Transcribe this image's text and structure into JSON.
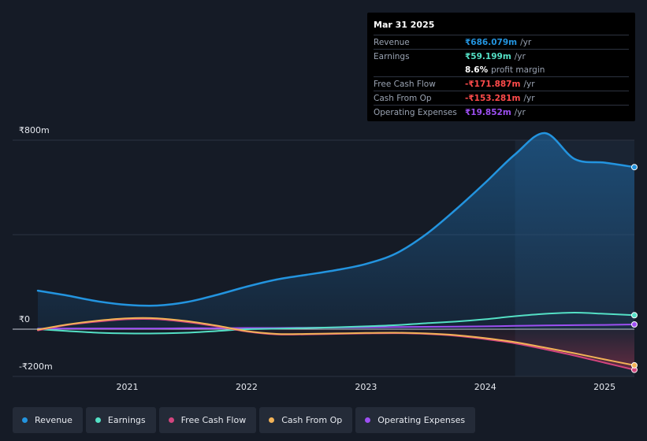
{
  "tooltip": {
    "date": "Mar 31 2025",
    "rows": [
      {
        "label": "Revenue",
        "value": "₹686.079m",
        "unit": "/yr",
        "color": "#2394df"
      },
      {
        "label": "Earnings",
        "value": "₹59.199m",
        "unit": "/yr",
        "color": "#54e0c5"
      },
      {
        "label": "",
        "value": "8.6%",
        "unit": "profit margin",
        "color": "#ffffff"
      },
      {
        "label": "Free Cash Flow",
        "value": "-₹171.887m",
        "unit": "/yr",
        "color": "#ff4b4b"
      },
      {
        "label": "Cash From Op",
        "value": "-₹153.281m",
        "unit": "/yr",
        "color": "#ff4b4b"
      },
      {
        "label": "Operating Expenses",
        "value": "₹19.852m",
        "unit": "/yr",
        "color": "#9d4ff2"
      }
    ]
  },
  "legend": [
    {
      "label": "Revenue",
      "color": "#2394df"
    },
    {
      "label": "Earnings",
      "color": "#54e0c5"
    },
    {
      "label": "Free Cash Flow",
      "color": "#d3457e"
    },
    {
      "label": "Cash From Op",
      "color": "#f2b257"
    },
    {
      "label": "Operating Expenses",
      "color": "#9d4ff2"
    }
  ],
  "chart_data": {
    "type": "area",
    "ylim": [
      -200,
      800
    ],
    "yticks": [
      {
        "value": 800,
        "label": "₹800m"
      },
      {
        "value": 0,
        "label": "₹0"
      },
      {
        "value": -200,
        "label": "-₹200m"
      }
    ],
    "xlim": [
      2020.25,
      2025.25
    ],
    "xticks": [
      {
        "value": 2021,
        "label": "2021"
      },
      {
        "value": 2022,
        "label": "2022"
      },
      {
        "value": 2023,
        "label": "2023"
      },
      {
        "value": 2024,
        "label": "2024"
      },
      {
        "value": 2025,
        "label": "2025"
      }
    ],
    "highlight_from": 2024.25,
    "series": [
      {
        "name": "Revenue",
        "color": "#2394df",
        "fill": true,
        "x": [
          2020.25,
          2020.5,
          2020.75,
          2021.0,
          2021.25,
          2021.5,
          2021.75,
          2022.0,
          2022.25,
          2022.5,
          2022.75,
          2023.0,
          2023.25,
          2023.5,
          2023.75,
          2024.0,
          2024.25,
          2024.5,
          2024.75,
          2025.0,
          2025.25
        ],
        "y": [
          163,
          142,
          118,
          103,
          100,
          115,
          145,
          180,
          210,
          230,
          250,
          276,
          320,
          400,
          505,
          620,
          740,
          830,
          720,
          705,
          686
        ]
      },
      {
        "name": "Earnings",
        "color": "#54e0c5",
        "fill": false,
        "x": [
          2020.25,
          2020.5,
          2020.75,
          2021.0,
          2021.25,
          2021.5,
          2021.75,
          2022.0,
          2022.25,
          2022.5,
          2022.75,
          2023.0,
          2023.25,
          2023.5,
          2023.75,
          2024.0,
          2024.25,
          2024.5,
          2024.75,
          2025.0,
          2025.25
        ],
        "y": [
          0,
          -8,
          -15,
          -18,
          -18,
          -15,
          -8,
          0,
          2,
          5,
          8,
          12,
          17,
          25,
          32,
          42,
          55,
          65,
          70,
          65,
          59
        ]
      },
      {
        "name": "Free Cash Flow",
        "color": "#d3457e",
        "fill": false,
        "x": [
          2020.25,
          2020.5,
          2020.75,
          2021.0,
          2021.25,
          2021.5,
          2021.75,
          2022.0,
          2022.25,
          2022.5,
          2022.75,
          2023.0,
          2023.25,
          2023.5,
          2023.75,
          2024.0,
          2024.25,
          2024.5,
          2024.75,
          2025.0,
          2025.25
        ],
        "y": [
          -5,
          18,
          32,
          42,
          42,
          30,
          12,
          -10,
          -22,
          -22,
          -20,
          -18,
          -17,
          -20,
          -28,
          -42,
          -60,
          -85,
          -112,
          -142,
          -172
        ]
      },
      {
        "name": "Cash From Op",
        "color": "#f2b257",
        "fill": false,
        "x": [
          2020.25,
          2020.5,
          2020.75,
          2021.0,
          2021.25,
          2021.5,
          2021.75,
          2022.0,
          2022.25,
          2022.5,
          2022.75,
          2023.0,
          2023.25,
          2023.5,
          2023.75,
          2024.0,
          2024.25,
          2024.5,
          2024.75,
          2025.0,
          2025.25
        ],
        "y": [
          -2,
          20,
          36,
          46,
          46,
          34,
          15,
          -8,
          -20,
          -20,
          -18,
          -16,
          -15,
          -18,
          -25,
          -38,
          -55,
          -78,
          -102,
          -128,
          -153
        ]
      },
      {
        "name": "Operating Expenses",
        "color": "#9d4ff2",
        "fill": false,
        "x": [
          2020.25,
          2020.5,
          2020.75,
          2021.0,
          2021.25,
          2021.5,
          2021.75,
          2022.0,
          2022.25,
          2022.5,
          2022.75,
          2023.0,
          2023.25,
          2023.5,
          2023.75,
          2024.0,
          2024.25,
          2024.5,
          2024.75,
          2025.0,
          2025.25
        ],
        "y": [
          2,
          3,
          3,
          3,
          3,
          4,
          4,
          5,
          5,
          6,
          7,
          8,
          9,
          10,
          11,
          12,
          14,
          16,
          17,
          18,
          20
        ]
      }
    ]
  }
}
